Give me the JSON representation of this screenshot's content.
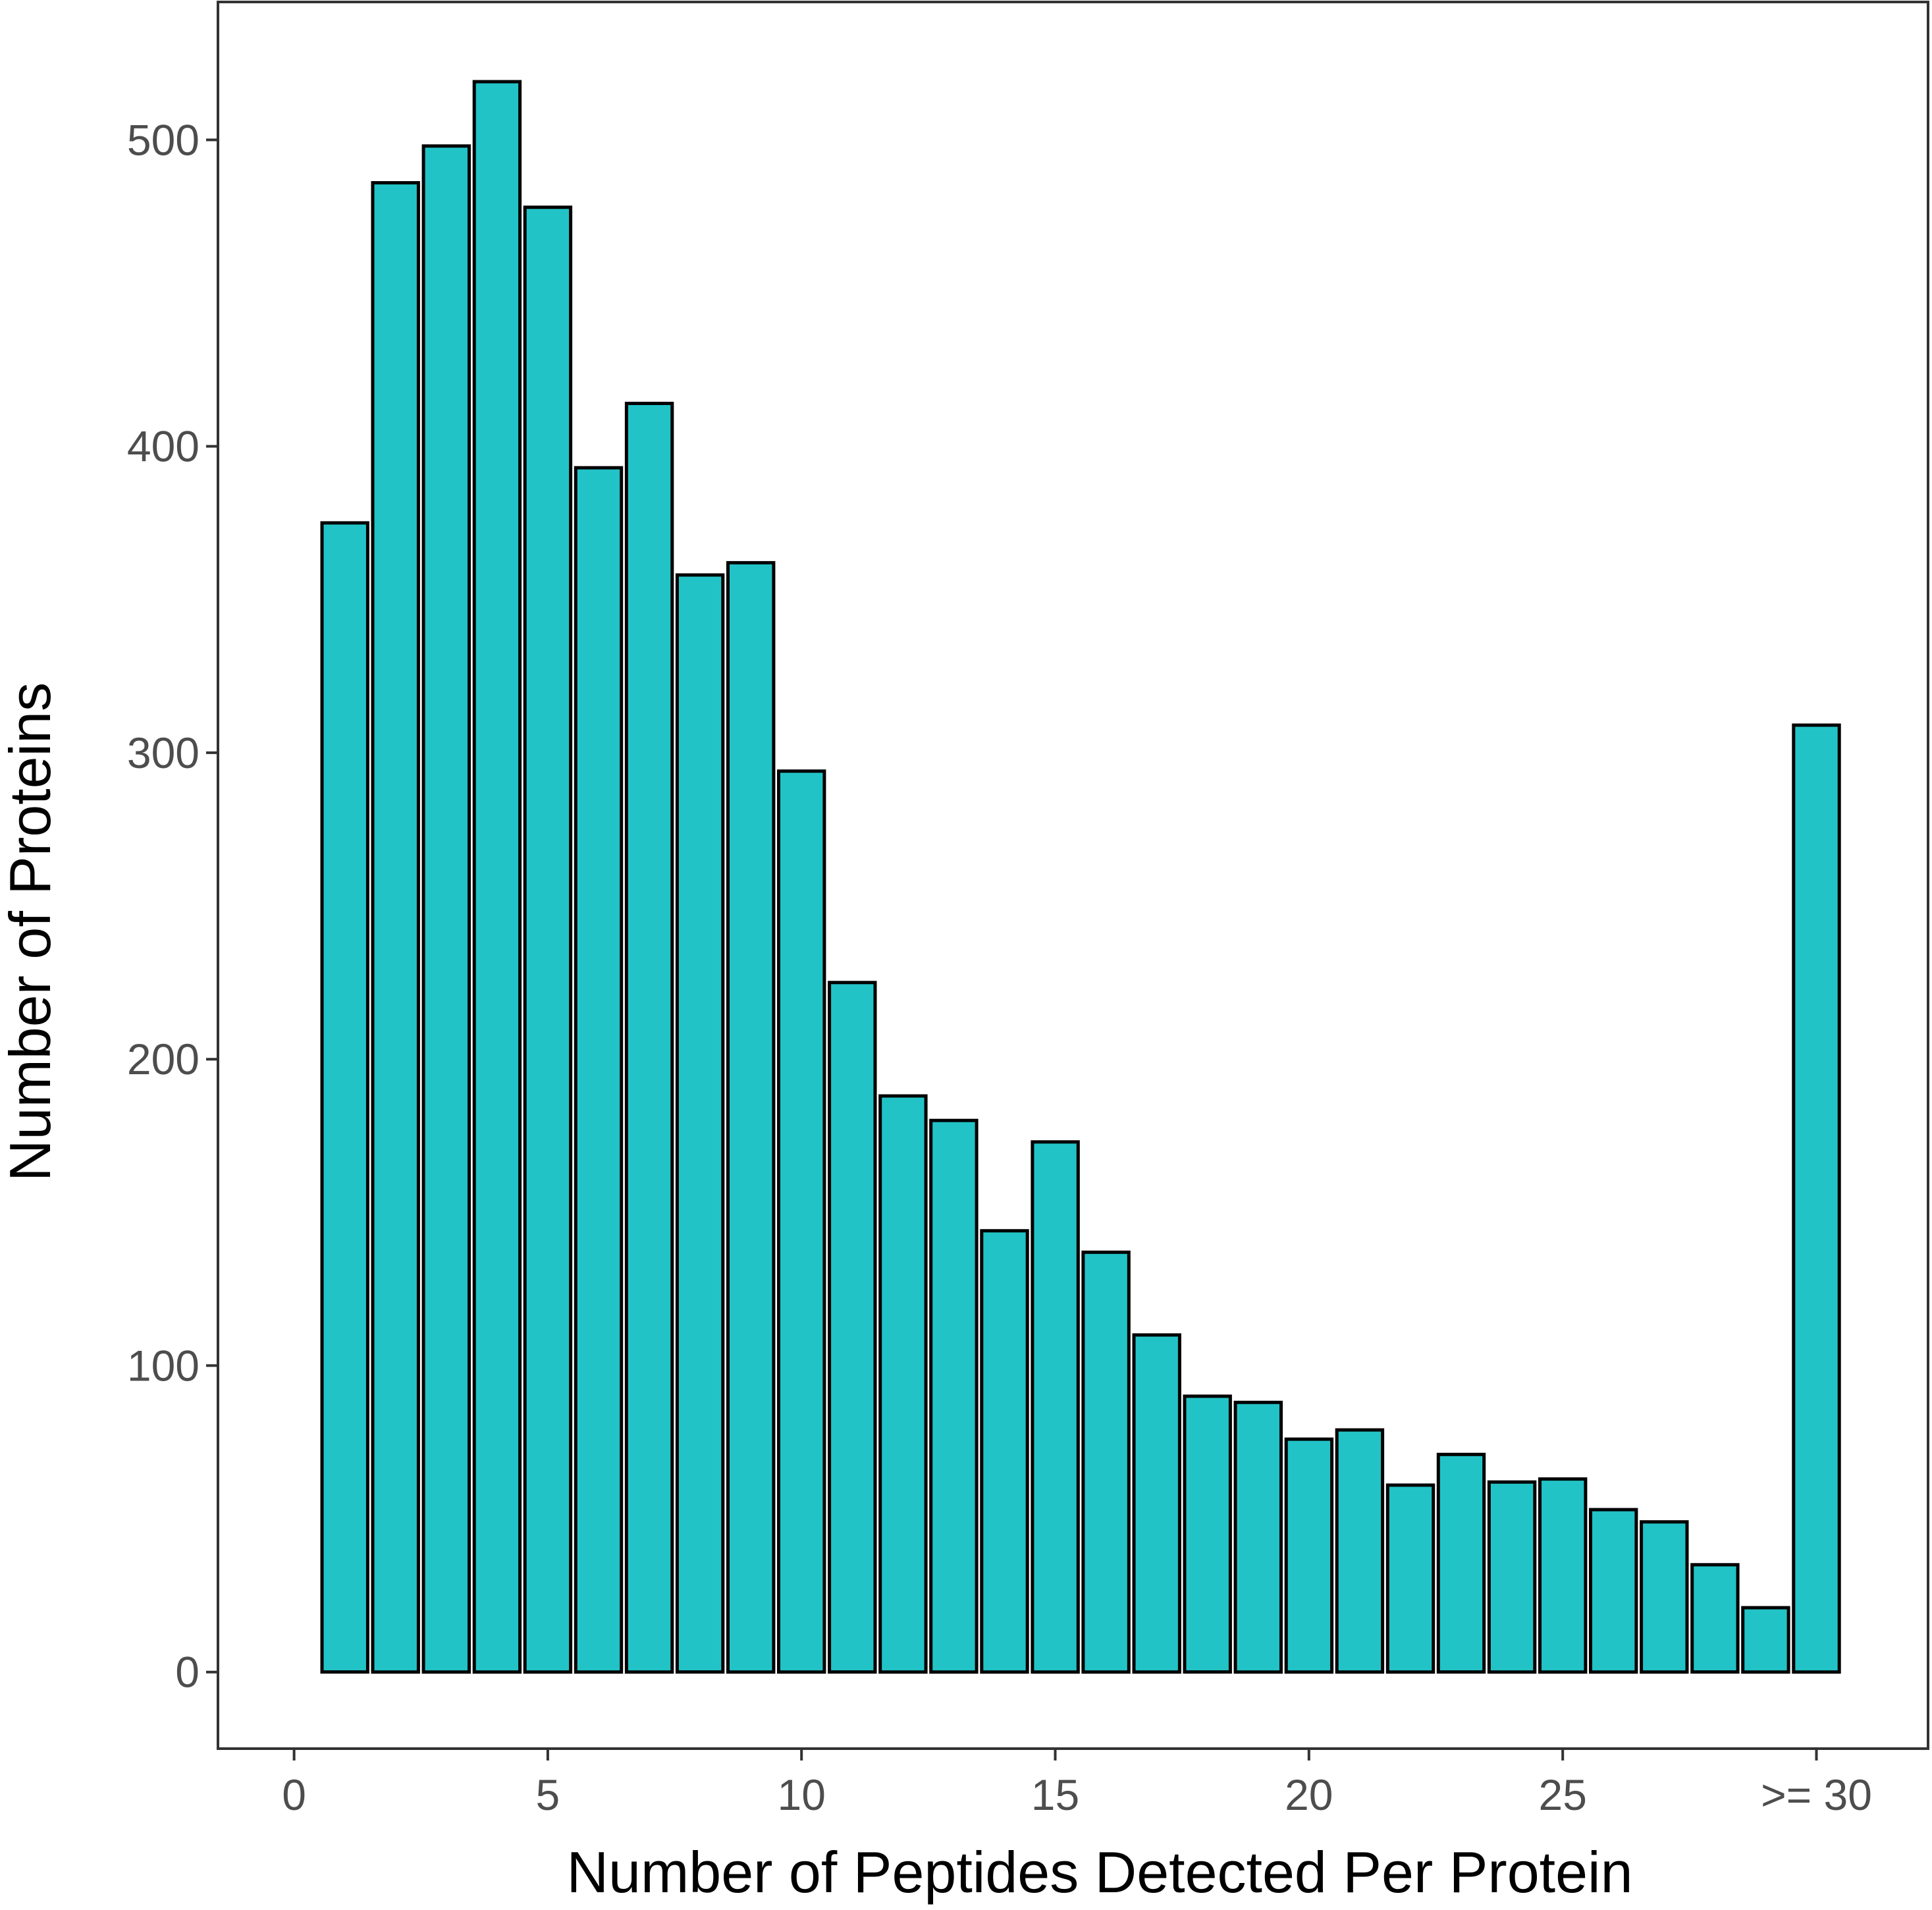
{
  "chart_data": {
    "type": "bar",
    "title": "",
    "xlabel": "Number of Peptides Detected Per Protein",
    "ylabel": "Number of Proteins",
    "x": [
      1,
      2,
      3,
      4,
      5,
      6,
      7,
      8,
      9,
      10,
      11,
      12,
      13,
      14,
      15,
      16,
      17,
      18,
      19,
      20,
      21,
      22,
      23,
      24,
      25,
      26,
      27,
      28,
      29,
      30
    ],
    "values": [
      375,
      486,
      498,
      519,
      478,
      393,
      414,
      358,
      362,
      294,
      225,
      188,
      180,
      144,
      173,
      137,
      110,
      90,
      88,
      76,
      79,
      61,
      71,
      62,
      63,
      53,
      49,
      35,
      21,
      309
    ],
    "xlim": [
      -1.5,
      32.2
    ],
    "ylim": [
      -25,
      545
    ],
    "x_ticks": [
      {
        "value": 0,
        "label": "0"
      },
      {
        "value": 5,
        "label": "5"
      },
      {
        "value": 10,
        "label": "10"
      },
      {
        "value": 15,
        "label": "15"
      },
      {
        "value": 20,
        "label": "20"
      },
      {
        "value": 25,
        "label": "25"
      },
      {
        "value": 30,
        "label": ">= 30"
      }
    ],
    "y_ticks": [
      {
        "value": 0,
        "label": "0"
      },
      {
        "value": 100,
        "label": "100"
      },
      {
        "value": 200,
        "label": "200"
      },
      {
        "value": 300,
        "label": "300"
      },
      {
        "value": 400,
        "label": "400"
      },
      {
        "value": 500,
        "label": "500"
      }
    ],
    "bar_fill": "#22c3c6",
    "bar_stroke": "#000000",
    "grid": false,
    "legend": "none"
  }
}
